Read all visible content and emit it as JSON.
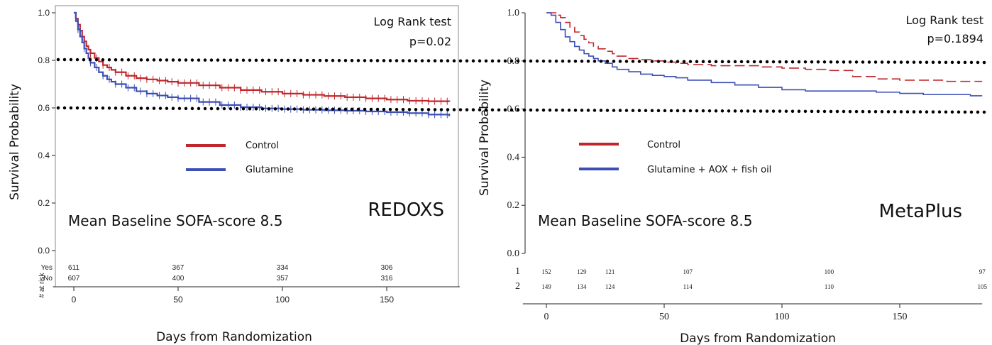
{
  "colors": {
    "control": "#c0272d",
    "glutamine": "#3d4fb5",
    "dots": "#000000"
  },
  "reference_lines": [
    0.8,
    0.6
  ],
  "chart_data": [
    {
      "type": "line",
      "title": "REDOXS",
      "xlabel": "Days from Randomization",
      "ylabel": "Survival Probability",
      "xlim": [
        -10,
        185
      ],
      "ylim": [
        0.0,
        1.0
      ],
      "xticks": [
        "0",
        "50",
        "100",
        "150"
      ],
      "yticks": [
        "0.0",
        "0.2",
        "0.4",
        "0.6",
        "0.8",
        "1.0"
      ],
      "annotation_line1": "Log Rank test",
      "annotation_line2": "p=0.02",
      "sofa_text": "Mean Baseline SOFA-score 8.5",
      "legend": [
        "Control",
        "Glutamine"
      ],
      "series": [
        {
          "name": "Control",
          "color": "#c0272d",
          "censor_marks": true,
          "x": [
            0,
            1,
            2,
            3,
            4,
            5,
            6,
            7,
            8,
            10,
            12,
            14,
            16,
            18,
            20,
            25,
            30,
            35,
            40,
            45,
            50,
            60,
            70,
            80,
            90,
            100,
            110,
            120,
            130,
            140,
            150,
            160,
            170,
            180
          ],
          "y": [
            1.0,
            0.975,
            0.95,
            0.925,
            0.9,
            0.88,
            0.86,
            0.845,
            0.83,
            0.81,
            0.795,
            0.78,
            0.77,
            0.76,
            0.75,
            0.735,
            0.725,
            0.72,
            0.715,
            0.71,
            0.705,
            0.695,
            0.685,
            0.675,
            0.668,
            0.66,
            0.655,
            0.65,
            0.645,
            0.64,
            0.635,
            0.63,
            0.628,
            0.626
          ]
        },
        {
          "name": "Glutamine",
          "color": "#3d4fb5",
          "censor_marks": true,
          "x": [
            0,
            1,
            2,
            3,
            4,
            5,
            6,
            7,
            8,
            10,
            12,
            14,
            16,
            18,
            20,
            25,
            30,
            35,
            40,
            45,
            50,
            60,
            70,
            80,
            90,
            100,
            110,
            120,
            130,
            140,
            150,
            160,
            170,
            180
          ],
          "y": [
            1.0,
            0.965,
            0.93,
            0.9,
            0.875,
            0.85,
            0.83,
            0.81,
            0.79,
            0.77,
            0.75,
            0.735,
            0.72,
            0.71,
            0.7,
            0.685,
            0.67,
            0.66,
            0.652,
            0.645,
            0.64,
            0.625,
            0.612,
            0.603,
            0.598,
            0.595,
            0.592,
            0.59,
            0.588,
            0.585,
            0.582,
            0.578,
            0.572,
            0.565
          ]
        }
      ],
      "risk_table": {
        "title": "# at risk",
        "rows": [
          {
            "label": "Yes",
            "values": [
              "611",
              "367",
              "334",
              "306"
            ]
          },
          {
            "label": "No",
            "values": [
              "607",
              "400",
              "357",
              "316"
            ]
          }
        ],
        "times": [
          0,
          50,
          100,
          150
        ]
      }
    },
    {
      "type": "line",
      "title": "MetaPlus",
      "xlabel": "Days from Randomization",
      "ylabel": "Survival Probability",
      "xlim": [
        -10,
        185
      ],
      "ylim": [
        0.0,
        1.0
      ],
      "xticks": [
        "0",
        "50",
        "100",
        "150"
      ],
      "yticks": [
        "0.0",
        "0.2",
        "0.4",
        "0.6",
        "0.8",
        "1.0"
      ],
      "annotation_line1": "Log Rank test",
      "annotation_line2": "p=0.1894",
      "sofa_text": "Mean Baseline SOFA-score 8.5",
      "legend": [
        "Control",
        "Glutamine + AOX + fish oil"
      ],
      "series": [
        {
          "name": "Control",
          "color": "#c0272d",
          "dashed": true,
          "x": [
            0,
            2,
            4,
            6,
            8,
            10,
            12,
            14,
            16,
            18,
            20,
            22,
            25,
            28,
            30,
            35,
            40,
            45,
            50,
            55,
            60,
            70,
            80,
            90,
            100,
            110,
            120,
            130,
            140,
            150,
            160,
            170,
            180,
            185
          ],
          "y": [
            1.0,
            1.0,
            0.99,
            0.98,
            0.96,
            0.94,
            0.92,
            0.905,
            0.89,
            0.875,
            0.86,
            0.85,
            0.84,
            0.83,
            0.82,
            0.81,
            0.805,
            0.8,
            0.795,
            0.79,
            0.785,
            0.78,
            0.78,
            0.775,
            0.77,
            0.765,
            0.76,
            0.735,
            0.725,
            0.72,
            0.72,
            0.715,
            0.715,
            0.715
          ]
        },
        {
          "name": "Glutamine + AOX + fish oil",
          "color": "#3d4fb5",
          "x": [
            0,
            2,
            4,
            6,
            8,
            10,
            12,
            14,
            16,
            18,
            20,
            22,
            25,
            28,
            30,
            35,
            40,
            45,
            50,
            55,
            60,
            70,
            80,
            90,
            100,
            110,
            120,
            130,
            140,
            150,
            160,
            170,
            180,
            185
          ],
          "y": [
            1.0,
            0.99,
            0.96,
            0.93,
            0.9,
            0.88,
            0.86,
            0.845,
            0.83,
            0.82,
            0.81,
            0.8,
            0.79,
            0.775,
            0.765,
            0.755,
            0.745,
            0.74,
            0.735,
            0.73,
            0.72,
            0.71,
            0.7,
            0.69,
            0.68,
            0.675,
            0.675,
            0.675,
            0.67,
            0.665,
            0.66,
            0.66,
            0.655,
            0.655
          ]
        }
      ],
      "risk_table": {
        "title": "",
        "rows": [
          {
            "label": "1",
            "values": [
              "152",
              "129",
              "121",
              "107",
              "100",
              "97"
            ]
          },
          {
            "label": "2",
            "values": [
              "149",
              "134",
              "124",
              "114",
              "110",
              "105"
            ]
          }
        ],
        "times": [
          0,
          15,
          27,
          60,
          120,
          185
        ]
      }
    }
  ]
}
